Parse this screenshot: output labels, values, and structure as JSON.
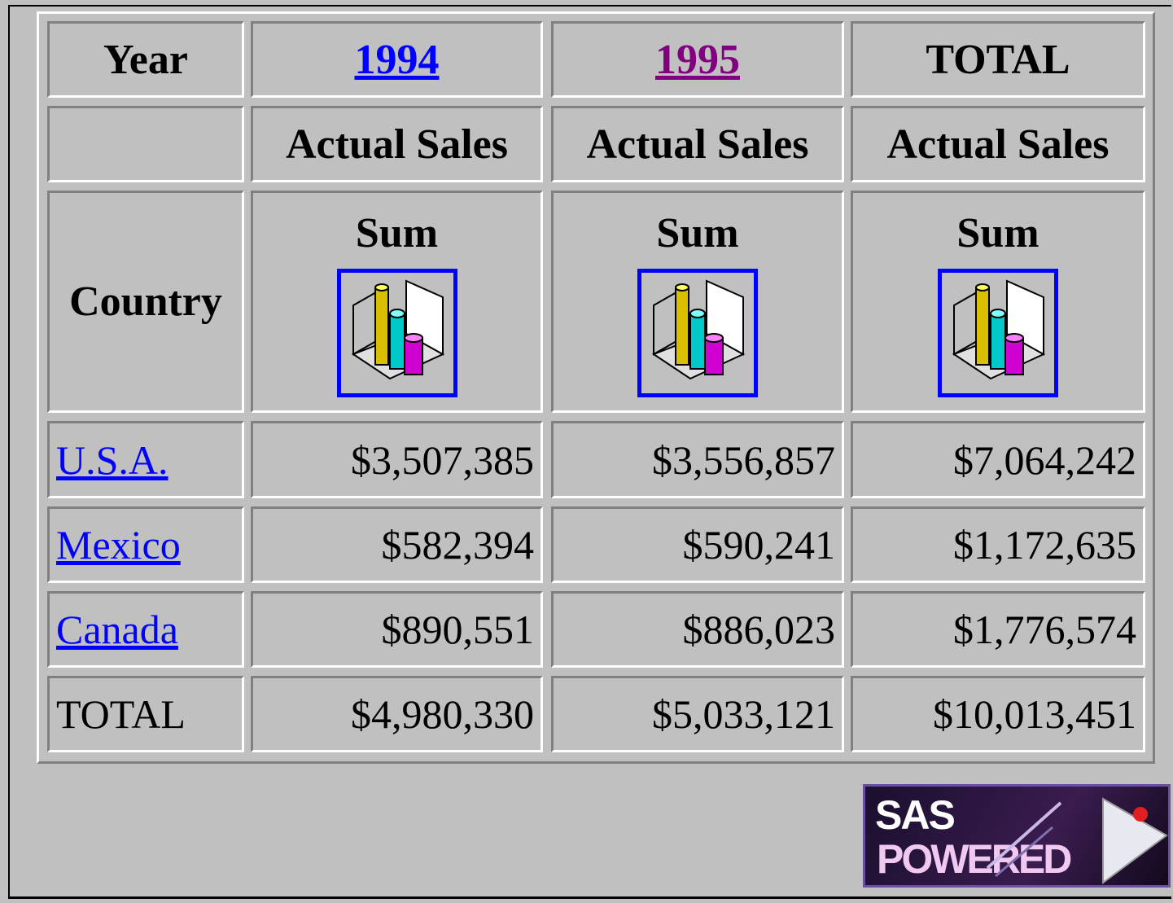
{
  "table": {
    "corner": {
      "year_label": "Year",
      "country_label": "Country"
    },
    "columns": [
      {
        "year": "1994",
        "measure": "Actual Sales",
        "statistic": "Sum"
      },
      {
        "year": "1995",
        "measure": "Actual Sales",
        "statistic": "Sum"
      },
      {
        "year": "TOTAL",
        "measure": "Actual Sales",
        "statistic": "Sum"
      }
    ],
    "rows": [
      {
        "label": "U.S.A.",
        "cells": [
          "$3,507,385",
          "$3,556,857",
          "$7,064,242"
        ]
      },
      {
        "label": "Mexico",
        "cells": [
          "$582,394",
          "$590,241",
          "$1,172,635"
        ]
      },
      {
        "label": "Canada",
        "cells": [
          "$890,551",
          "$886,023",
          "$1,776,574"
        ]
      },
      {
        "label": "TOTAL",
        "cells": [
          "$4,980,330",
          "$5,033,121",
          "$10,013,451"
        ]
      }
    ]
  },
  "logo": {
    "line1": "SAS",
    "line2": "POWERED"
  }
}
